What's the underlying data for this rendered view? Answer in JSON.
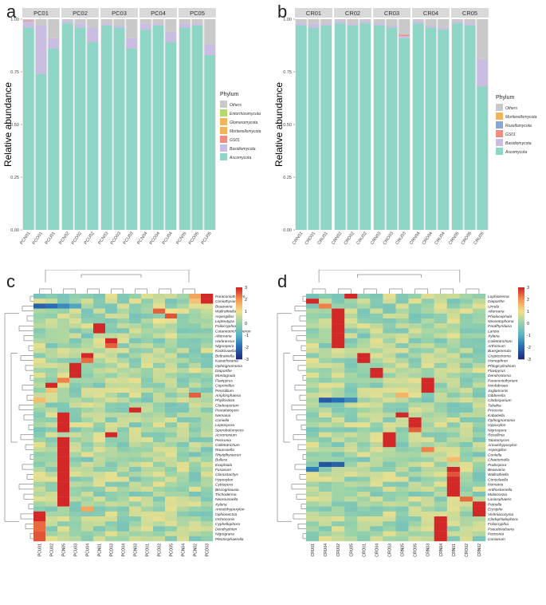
{
  "panels": {
    "a": "a",
    "b": "b",
    "c": "c",
    "d": "d"
  },
  "colors": {
    "Others": "#c9c9c9",
    "Entorrhizomycota": "#b5d96a",
    "Glomeromycota": "#f2b35c",
    "Mortierellomycota": "#f2b35c",
    "Rozellomycota": "#8aa6cf",
    "GS01": "#ef8d83",
    "Basidiomycota": "#c9bde2",
    "Ascomycota": "#8ed5c5"
  },
  "chart_data": [
    {
      "id": "a",
      "type": "bar",
      "stacked": true,
      "ylabel": "Relative abundance",
      "ylim": [
        0,
        1
      ],
      "yticks": [
        "0.00",
        "0.25",
        "0.50",
        "0.75",
        "1.00"
      ],
      "facets": [
        "PC01",
        "PC02",
        "PC03",
        "PC04",
        "PC05"
      ],
      "legend_title": "Phylum",
      "legend": [
        "Others",
        "Entorrhizomycota",
        "Glomeromycota",
        "Mortierellomycota",
        "GS01",
        "Basidiomycota",
        "Ascomycota"
      ],
      "groups": [
        {
          "facet": "PC01",
          "categories": [
            "PCN01",
            "PCO01",
            "PCU01"
          ]
        },
        {
          "facet": "PC02",
          "categories": [
            "PCN02",
            "PCO02",
            "PCU02"
          ]
        },
        {
          "facet": "PC03",
          "categories": [
            "PCN03",
            "PCO03",
            "PCU03"
          ]
        },
        {
          "facet": "PC04",
          "categories": [
            "PCN04",
            "PCO04",
            "PCU04"
          ]
        },
        {
          "facet": "PC05",
          "categories": [
            "PCN05",
            "PCO05",
            "PCU05"
          ]
        }
      ],
      "series_order": [
        "Ascomycota",
        "Basidiomycota",
        "Glomeromycota",
        "Mortierellomycota",
        "GS01",
        "Entorrhizomycota",
        "Others"
      ],
      "bars": [
        {
          "Ascomycota": 0.96,
          "Basidiomycota": 0.03,
          "GS01": 0.005,
          "Others": 0.005
        },
        {
          "Ascomycota": 0.74,
          "Basidiomycota": 0.23,
          "Others": 0.03
        },
        {
          "Ascomycota": 0.86,
          "Basidiomycota": 0.05,
          "Others": 0.09
        },
        {
          "Ascomycota": 0.98,
          "Basidiomycota": 0.01,
          "Others": 0.01
        },
        {
          "Ascomycota": 0.96,
          "Basidiomycota": 0.02,
          "Others": 0.02
        },
        {
          "Ascomycota": 0.89,
          "Basidiomycota": 0.07,
          "Others": 0.04
        },
        {
          "Ascomycota": 0.97,
          "Basidiomycota": 0.01,
          "Others": 0.02
        },
        {
          "Ascomycota": 0.96,
          "Basidiomycota": 0.01,
          "Others": 0.03
        },
        {
          "Ascomycota": 0.86,
          "Basidiomycota": 0.05,
          "Others": 0.09
        },
        {
          "Ascomycota": 0.95,
          "Basidiomycota": 0.03,
          "Others": 0.02
        },
        {
          "Ascomycota": 0.97,
          "Basidiomycota": 0.01,
          "Others": 0.02
        },
        {
          "Ascomycota": 0.89,
          "Basidiomycota": 0.05,
          "Others": 0.06
        },
        {
          "Ascomycota": 0.96,
          "Basidiomycota": 0.02,
          "Others": 0.02
        },
        {
          "Ascomycota": 0.97,
          "Basidiomycota": 0.01,
          "Others": 0.02
        },
        {
          "Ascomycota": 0.83,
          "Basidiomycota": 0.05,
          "Others": 0.12
        }
      ]
    },
    {
      "id": "b",
      "type": "bar",
      "stacked": true,
      "ylabel": "Relative abundance",
      "ylim": [
        0,
        1
      ],
      "yticks": [
        "0.00",
        "0.25",
        "0.50",
        "0.75",
        "1.00"
      ],
      "facets": [
        "CR01",
        "CR02",
        "CR03",
        "CR04",
        "CR05"
      ],
      "legend_title": "Phylum",
      "legend": [
        "Others",
        "Mortierellomycota",
        "Rozellomycota",
        "GS01",
        "Basidiomycota",
        "Ascomycota"
      ],
      "groups": [
        {
          "facet": "CR01",
          "categories": [
            "CRN01",
            "CRO01",
            "CRU01"
          ]
        },
        {
          "facet": "CR02",
          "categories": [
            "CRN02",
            "CRO02",
            "CRU02"
          ]
        },
        {
          "facet": "CR03",
          "categories": [
            "CRN03",
            "CRO03",
            "CRU03"
          ]
        },
        {
          "facet": "CR04",
          "categories": [
            "CRN04",
            "CRO04",
            "CRU04"
          ]
        },
        {
          "facet": "CR05",
          "categories": [
            "CRN05",
            "CRO05",
            "CRU05"
          ]
        }
      ],
      "series_order": [
        "Ascomycota",
        "Basidiomycota",
        "Rozellomycota",
        "Mortierellomycota",
        "GS01",
        "Others"
      ],
      "bars": [
        {
          "Ascomycota": 0.97,
          "Basidiomycota": 0.01,
          "Others": 0.02
        },
        {
          "Ascomycota": 0.96,
          "Basidiomycota": 0.02,
          "Others": 0.02
        },
        {
          "Ascomycota": 0.97,
          "Basidiomycota": 0.01,
          "Others": 0.02
        },
        {
          "Ascomycota": 0.98,
          "Basidiomycota": 0.01,
          "Others": 0.01
        },
        {
          "Ascomycota": 0.97,
          "Basidiomycota": 0.01,
          "Others": 0.02
        },
        {
          "Ascomycota": 0.98,
          "Basidiomycota": 0.01,
          "Others": 0.01
        },
        {
          "Ascomycota": 0.97,
          "Basidiomycota": 0.01,
          "Others": 0.02
        },
        {
          "Ascomycota": 0.96,
          "Basidiomycota": 0.01,
          "Others": 0.03
        },
        {
          "Ascomycota": 0.91,
          "Basidiomycota": 0.01,
          "GS01": 0.006,
          "Others": 0.074
        },
        {
          "Ascomycota": 0.98,
          "Basidiomycota": 0.01,
          "Others": 0.01
        },
        {
          "Ascomycota": 0.96,
          "Basidiomycota": 0.01,
          "Others": 0.03
        },
        {
          "Ascomycota": 0.95,
          "Basidiomycota": 0.01,
          "Others": 0.04
        },
        {
          "Ascomycota": 0.98,
          "Basidiomycota": 0.01,
          "Others": 0.01
        },
        {
          "Ascomycota": 0.97,
          "Basidiomycota": 0.01,
          "Others": 0.02
        },
        {
          "Ascomycota": 0.68,
          "Basidiomycota": 0.13,
          "Others": 0.19
        }
      ]
    },
    {
      "id": "c",
      "type": "heatmap",
      "scale": [
        "3",
        "2",
        "1",
        "0",
        "-1",
        "-2",
        "-3"
      ],
      "vmin": -3,
      "vmax": 3,
      "columns": [
        "PCU01",
        "PCU02",
        "PCN05",
        "PCU03",
        "PCU04",
        "PCN01",
        "PCO03",
        "PCO04",
        "PCN03",
        "PCO01",
        "PCO02",
        "PCO05",
        "PCN04",
        "PCN02",
        "PCO03"
      ],
      "rows": [
        "Paraconiothyrium",
        "Coniothyrium",
        "Beauveria",
        "Wallrothiella",
        "Aspergillus",
        "Lepteutypa",
        "Foliocryphia",
        "Cutaneotrichosporon",
        "Alternaria",
        "Harknessia",
        "Nigrospora",
        "Kockovaella",
        "Beltraniella",
        "Kazachstania",
        "Ophiognomonia",
        "Diaporthe",
        "Montagnula",
        "Flavipyrus",
        "Coprinellus",
        "Penicillium",
        "Amphisphaeria",
        "Phyllosticta",
        "Cladosporium",
        "Pestalotiopsis",
        "Nemania",
        "Coniella",
        "Leptospora",
        "Sporobolomyces",
        "Acremonium",
        "Periconia",
        "Colletotrichum",
        "Roussoella",
        "Rhytidhysteron",
        "Bullera",
        "Exophiala",
        "Fusarium",
        "Clonostachys",
        "Hypoxylon",
        "Cytospora",
        "Biscogniauxia",
        "Trichoderma",
        "Neorousoella",
        "Xylaria",
        "Annulohypoxylon",
        "Ophionectria",
        "Ochroconis",
        "Cyphellophora",
        "Dendryphion",
        "Nigrograna",
        "Plectosphaerella"
      ],
      "hot": [
        [
          0,
          14,
          3
        ],
        [
          1,
          14,
          3
        ],
        [
          0,
          13,
          1.8
        ],
        [
          1,
          13,
          1.4
        ],
        [
          2,
          0,
          -2.2
        ],
        [
          2,
          1,
          -2.0
        ],
        [
          2,
          2,
          -1.6
        ],
        [
          2,
          3,
          -1.2
        ],
        [
          3,
          10,
          2.5
        ],
        [
          3,
          11,
          1.0
        ],
        [
          4,
          11,
          2.6
        ],
        [
          5,
          10,
          1.0
        ],
        [
          6,
          5,
          3
        ],
        [
          7,
          5,
          3
        ],
        [
          9,
          6,
          3
        ],
        [
          10,
          6,
          2.5
        ],
        [
          12,
          4,
          3
        ],
        [
          13,
          4,
          2.4
        ],
        [
          14,
          3,
          3
        ],
        [
          15,
          3,
          3
        ],
        [
          16,
          3,
          3
        ],
        [
          17,
          2,
          2.2
        ],
        [
          18,
          1,
          3
        ],
        [
          19,
          1,
          1.4
        ],
        [
          20,
          13,
          2.5
        ],
        [
          21,
          0,
          1.5
        ],
        [
          23,
          8,
          3
        ],
        [
          24,
          2,
          3
        ],
        [
          25,
          2,
          3
        ],
        [
          26,
          2,
          3
        ],
        [
          27,
          2,
          3
        ],
        [
          28,
          6,
          3
        ],
        [
          29,
          2,
          3
        ],
        [
          30,
          2,
          3
        ],
        [
          31,
          2,
          3
        ],
        [
          32,
          2,
          3
        ],
        [
          33,
          2,
          3
        ],
        [
          34,
          2,
          3
        ],
        [
          35,
          2,
          3
        ],
        [
          36,
          2,
          3
        ],
        [
          37,
          2,
          3
        ],
        [
          38,
          2,
          3
        ],
        [
          39,
          2,
          3
        ],
        [
          40,
          2,
          3
        ],
        [
          41,
          2,
          3
        ],
        [
          42,
          2,
          3
        ],
        [
          43,
          4,
          1.8
        ],
        [
          44,
          0,
          3
        ],
        [
          45,
          0,
          3
        ],
        [
          46,
          0,
          2.4
        ],
        [
          47,
          0,
          2.4
        ],
        [
          48,
          0,
          2.6
        ],
        [
          49,
          0,
          2.6
        ]
      ]
    },
    {
      "id": "d",
      "type": "heatmap",
      "scale": [
        "3",
        "2",
        "1",
        "0",
        "-1",
        "-2",
        "-3"
      ],
      "vmin": -3,
      "vmax": 3,
      "columns": [
        "CRU01",
        "CRU04",
        "CRU02",
        "CRU05",
        "CRO01",
        "CRO04",
        "CRO03",
        "CRN05",
        "CRO05",
        "CRN03",
        "CRN04",
        "CRN01",
        "CRO02",
        "CRN02"
      ],
      "rows": [
        "Lophiotrema",
        "Diaporthe",
        "Urnula",
        "Alternaria",
        "Phialocephala",
        "Neosetophoma",
        "Parafhyridaria",
        "Lanzia",
        "Xylaria",
        "Colletotrichum",
        "Arthrinium",
        "Buergenerula",
        "Cryptostroma",
        "Homophron",
        "Phlogicylindrium",
        "Flavipyrus",
        "Dendrostoma",
        "Paraconiothyrium",
        "Neofabraea",
        "Juglanconis",
        "Gibberella",
        "Cladosporium",
        "Tubakia",
        "Preussia",
        "Kabatiella",
        "Ophiognomonia",
        "Hypoxylon",
        "Nigrospora",
        "Rosellinia",
        "Talaromyces",
        "Annulohypoxylon",
        "Aspergillus",
        "Coniella",
        "Chaetomella",
        "Podospora",
        "Beauveria",
        "Wallrothiella",
        "Consolaella",
        "Nemania",
        "Anthostomella",
        "Malassezia",
        "Lasiosphaeris",
        "Petriella",
        "Erysiphe",
        "Vishniacozyma",
        "Cladophialophora",
        "Foliocryphia",
        "Pseudovalsaria",
        "Periconia",
        "Coniarium"
      ],
      "hot": [
        [
          0,
          3,
          3
        ],
        [
          1,
          0,
          3
        ],
        [
          2,
          1,
          2.2
        ],
        [
          3,
          2,
          3
        ],
        [
          4,
          2,
          3
        ],
        [
          5,
          2,
          3
        ],
        [
          6,
          2,
          3
        ],
        [
          7,
          2,
          3
        ],
        [
          8,
          2,
          3
        ],
        [
          9,
          2,
          3
        ],
        [
          10,
          2,
          3
        ],
        [
          12,
          4,
          3
        ],
        [
          13,
          4,
          3
        ],
        [
          15,
          5,
          3
        ],
        [
          16,
          5,
          3
        ],
        [
          17,
          9,
          3
        ],
        [
          18,
          9,
          3
        ],
        [
          19,
          9,
          3
        ],
        [
          20,
          7,
          1.6
        ],
        [
          21,
          1,
          -2.3
        ],
        [
          21,
          2,
          -2.0
        ],
        [
          21,
          3,
          -1.6
        ],
        [
          24,
          7,
          3
        ],
        [
          25,
          8,
          3
        ],
        [
          26,
          8,
          3
        ],
        [
          27,
          8,
          2.5
        ],
        [
          28,
          6,
          3
        ],
        [
          29,
          6,
          3
        ],
        [
          30,
          6,
          3
        ],
        [
          31,
          9,
          2.2
        ],
        [
          33,
          11,
          1.5
        ],
        [
          34,
          1,
          -2.4
        ],
        [
          34,
          2,
          -2.2
        ],
        [
          35,
          0,
          -1.8
        ],
        [
          35,
          11,
          3
        ],
        [
          36,
          11,
          2.6
        ],
        [
          37,
          11,
          3
        ],
        [
          38,
          11,
          3
        ],
        [
          39,
          11,
          3
        ],
        [
          40,
          11,
          3
        ],
        [
          41,
          12,
          2.4
        ],
        [
          42,
          13,
          3
        ],
        [
          43,
          13,
          3
        ],
        [
          44,
          13,
          3
        ],
        [
          45,
          10,
          3
        ],
        [
          46,
          10,
          3
        ],
        [
          47,
          10,
          3
        ],
        [
          48,
          10,
          3
        ],
        [
          49,
          10,
          3
        ]
      ]
    }
  ]
}
